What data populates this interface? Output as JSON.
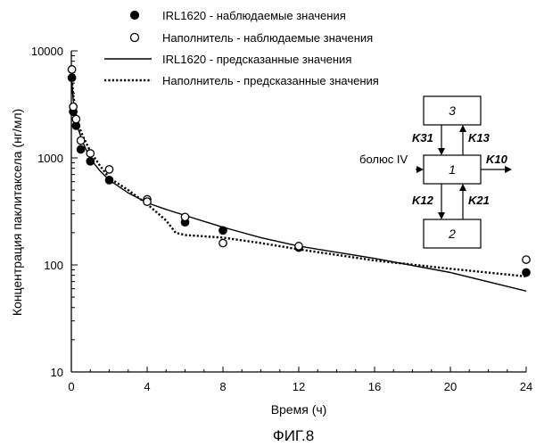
{
  "chart_data": {
    "type": "scatter",
    "xlabel": "Время (ч)",
    "ylabel": "Концентрация паклитаксела (нг/мл)",
    "xlim": [
      0,
      24
    ],
    "ylim": [
      10,
      10000
    ],
    "yscale": "log",
    "x_ticks": [
      "0",
      "4",
      "8",
      "12",
      "16",
      "20",
      "24"
    ],
    "y_ticks": [
      "10",
      "100",
      "1000",
      "10000"
    ],
    "grid": false,
    "legend_position": "top",
    "figure_caption": "ФИГ.8",
    "series": [
      {
        "name": "IRL1620 - наблюдаемые значения",
        "kind": "marker-filled",
        "color": "#000000",
        "points": [
          [
            0.03,
            5600
          ],
          [
            0.1,
            2700
          ],
          [
            0.25,
            2000
          ],
          [
            0.5,
            1200
          ],
          [
            1,
            930
          ],
          [
            2,
            620
          ],
          [
            6,
            250
          ],
          [
            8,
            210
          ],
          [
            12,
            145
          ],
          [
            24,
            85
          ]
        ]
      },
      {
        "name": "Наполнитель - наблюдаемые значения",
        "kind": "marker-open",
        "color": "#000000",
        "points": [
          [
            0.03,
            6700
          ],
          [
            0.1,
            3000
          ],
          [
            0.25,
            2300
          ],
          [
            0.5,
            1450
          ],
          [
            1,
            1100
          ],
          [
            2,
            780
          ],
          [
            4,
            410
          ],
          [
            4,
            390
          ],
          [
            6,
            280
          ],
          [
            8,
            160
          ],
          [
            12,
            150
          ],
          [
            24,
            112
          ]
        ]
      },
      {
        "name": "IRL1620 - предсказанные значения",
        "kind": "line-solid",
        "color": "#000000",
        "points": [
          [
            0,
            5800
          ],
          [
            0.1,
            3500
          ],
          [
            0.3,
            2000
          ],
          [
            0.6,
            1400
          ],
          [
            1,
            980
          ],
          [
            1.5,
            760
          ],
          [
            2,
            620
          ],
          [
            3,
            470
          ],
          [
            4,
            380
          ],
          [
            5,
            330
          ],
          [
            6,
            290
          ],
          [
            7,
            255
          ],
          [
            8,
            225
          ],
          [
            10,
            180
          ],
          [
            12,
            150
          ],
          [
            16,
            115
          ],
          [
            20,
            85
          ],
          [
            24,
            57
          ]
        ]
      },
      {
        "name": "Наполнитель - предсказанные значения",
        "kind": "line-dotted",
        "color": "#000000",
        "points": [
          [
            0,
            6400
          ],
          [
            0.1,
            3900
          ],
          [
            0.3,
            2200
          ],
          [
            0.6,
            1600
          ],
          [
            1,
            1150
          ],
          [
            1.5,
            850
          ],
          [
            2,
            650
          ],
          [
            3,
            500
          ],
          [
            4,
            370
          ],
          [
            5,
            260
          ],
          [
            5.5,
            200
          ],
          [
            6,
            190
          ],
          [
            8,
            180
          ],
          [
            10,
            160
          ],
          [
            12,
            140
          ],
          [
            16,
            110
          ],
          [
            20,
            92
          ],
          [
            24,
            78
          ]
        ]
      }
    ]
  },
  "diagram": {
    "box_top": "3",
    "box_center": "1",
    "box_bottom": "2",
    "k31": "K31",
    "k13": "K13",
    "k12": "K12",
    "k21": "K21",
    "k10": "K10",
    "bolus": "болюс IV"
  }
}
